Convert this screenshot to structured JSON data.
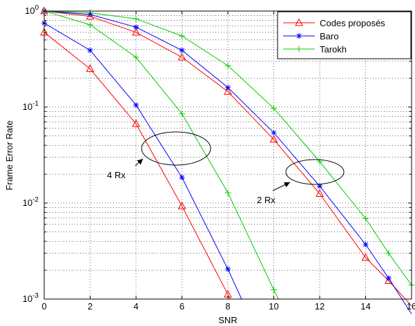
{
  "chart_data": {
    "type": "line",
    "xlabel": "SNR",
    "ylabel": "Frame Error Rate",
    "xlim": [
      0,
      16
    ],
    "ylim": [
      0.001,
      1
    ],
    "yscale": "log",
    "grid": true,
    "legend_position": "top-right",
    "x_ticks": [
      0,
      2,
      4,
      6,
      8,
      10,
      12,
      14,
      16
    ],
    "x_tick_labels": [
      "0",
      "2",
      "4",
      "6",
      "8",
      "10",
      "12",
      "14",
      "16"
    ],
    "y_ticks": [
      0.001,
      0.01,
      0.1,
      1
    ],
    "y_tick_labels": [
      {
        "base": "10",
        "exp": "-3"
      },
      {
        "base": "10",
        "exp": "-2"
      },
      {
        "base": "10",
        "exp": "-1"
      },
      {
        "base": "10",
        "exp": "0"
      }
    ],
    "series": [
      {
        "name": "Codes proposés",
        "color": "#ff0000",
        "marker": "triangle",
        "x": [
          0,
          2,
          4,
          6,
          8,
          8.1
        ],
        "y": [
          0.6,
          0.25,
          0.067,
          0.0093,
          0.00112,
          0.001
        ],
        "marker_count": 5
      },
      {
        "name": "Baro",
        "color": "#0000ff",
        "marker": "star",
        "x": [
          0,
          2,
          4,
          6,
          8,
          8.6
        ],
        "y": [
          0.75,
          0.39,
          0.105,
          0.0185,
          0.00205,
          0.001
        ],
        "marker_count": 5
      },
      {
        "name": "Tarokh",
        "color": "#00cc00",
        "marker": "plus",
        "x": [
          0,
          2,
          4,
          6,
          8,
          10,
          10.2
        ],
        "y": [
          1.0,
          0.72,
          0.33,
          0.085,
          0.0128,
          0.00125,
          0.001
        ],
        "marker_count": 6
      },
      {
        "name": "Codes proposés",
        "color": "#ff0000",
        "marker": "triangle",
        "x": [
          0,
          2,
          4,
          6,
          8,
          10,
          12,
          14,
          15,
          16
        ],
        "y": [
          1.0,
          0.88,
          0.6,
          0.33,
          0.145,
          0.046,
          0.0125,
          0.0027,
          0.00155,
          0.00085
        ],
        "marker_count": 9
      },
      {
        "name": "Baro",
        "color": "#0000ff",
        "marker": "star",
        "x": [
          0,
          2,
          4,
          6,
          8,
          10,
          12,
          14,
          15,
          16
        ],
        "y": [
          1.0,
          0.92,
          0.68,
          0.39,
          0.16,
          0.054,
          0.015,
          0.0037,
          0.00165,
          0.0007
        ],
        "marker_count": 9
      },
      {
        "name": "Tarokh",
        "color": "#00cc00",
        "marker": "plus",
        "x": [
          0,
          2,
          4,
          6,
          8,
          10,
          12,
          14,
          15,
          16
        ],
        "y": [
          1.0,
          0.96,
          0.83,
          0.55,
          0.27,
          0.097,
          0.027,
          0.0069,
          0.003,
          0.0014
        ],
        "marker_count": 10
      }
    ],
    "legend": [
      {
        "name": "Codes proposés",
        "color": "#ff0000",
        "marker": "triangle"
      },
      {
        "name": "Baro",
        "color": "#0000ff",
        "marker": "star"
      },
      {
        "name": "Tarokh",
        "color": "#00cc00",
        "marker": "plus"
      }
    ],
    "annotations": [
      {
        "text": "4 Rx",
        "target": {
          "x": 5,
          "y": 0.037
        }
      },
      {
        "text": "2 Rx",
        "target": {
          "x": 11.5,
          "y": 0.019
        }
      }
    ]
  }
}
